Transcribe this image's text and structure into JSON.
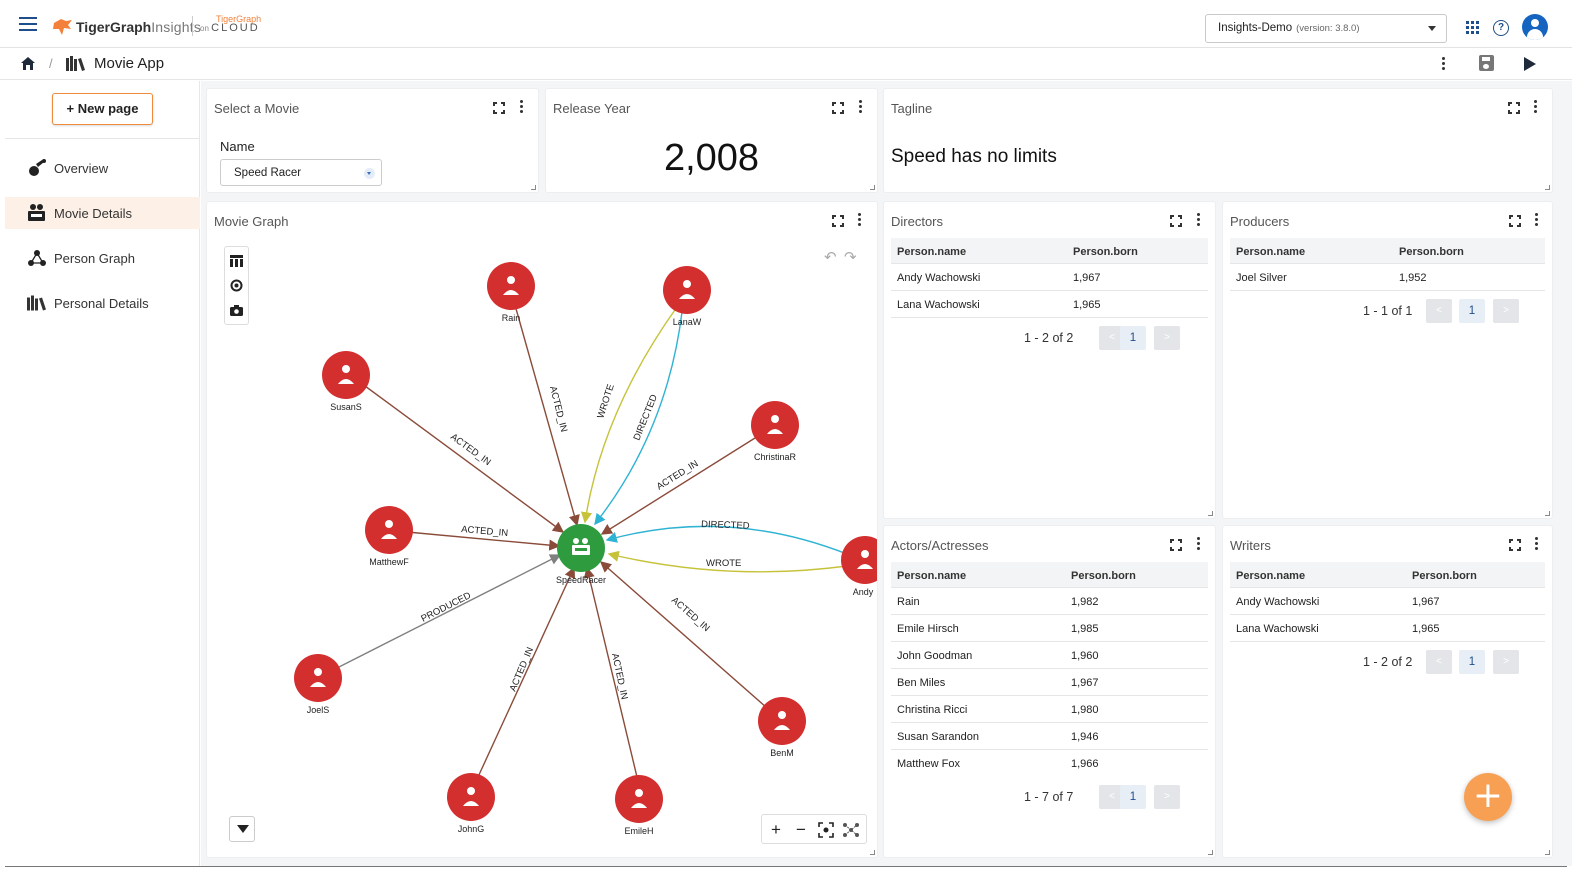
{
  "header": {
    "brand_bold": "TigerGraph",
    "brand_light": "Insights",
    "cloud_small": "on",
    "cloud_tg": "TigerGraph",
    "cloud_text": "CLOUD",
    "project_name": "Insights-Demo",
    "project_version": "(version: 3.8.0)",
    "help_glyph": "?",
    "icons": [
      "menu-icon",
      "tigergraph-logo",
      "apps-grid-icon",
      "help-icon",
      "account-icon"
    ]
  },
  "breadcrumb": {
    "separator": "/",
    "app_title": "Movie App",
    "icons": [
      "home-icon",
      "app-icon",
      "more-vert-icon",
      "save-icon",
      "play-icon"
    ]
  },
  "sidebar": {
    "new_page_label": "+ New page",
    "items": [
      {
        "label": "Overview",
        "icon": "bar-chart-icon",
        "active": false
      },
      {
        "label": "Movie Details",
        "icon": "movie-icon",
        "active": true
      },
      {
        "label": "Person Graph",
        "icon": "graph-icon",
        "active": false
      },
      {
        "label": "Personal Details",
        "icon": "people-icon",
        "active": false
      }
    ]
  },
  "widgets": {
    "select_movie": {
      "title": "Select a Movie",
      "field_label": "Name",
      "value": "Speed Racer"
    },
    "release_year": {
      "title": "Release Year",
      "value": "2,008"
    },
    "tagline": {
      "title": "Tagline",
      "value": "Speed has no limits"
    },
    "movie_graph": {
      "title": "Movie Graph",
      "undo": "↶",
      "redo": "↷",
      "zoom_in": "+",
      "zoom_out": "−",
      "center": "SpeedRacer",
      "nodes": [
        "Rain",
        "LanaW",
        "SusanS",
        "ChristinaR",
        "MatthewF",
        "Andy",
        "JoelS",
        "BenM",
        "JohnG",
        "EmileH"
      ],
      "edges": [
        {
          "from": "Rain",
          "label": "ACTED_IN"
        },
        {
          "from": "LanaW",
          "label": "WROTE"
        },
        {
          "from": "LanaW",
          "label": "DIRECTED"
        },
        {
          "from": "SusanS",
          "label": "ACTED_IN"
        },
        {
          "from": "ChristinaR",
          "label": "ACTED_IN"
        },
        {
          "from": "MatthewF",
          "label": "ACTED_IN"
        },
        {
          "from": "Andy",
          "label": "DIRECTED"
        },
        {
          "from": "Andy",
          "label": "WROTE"
        },
        {
          "from": "JoelS",
          "label": "PRODUCED"
        },
        {
          "from": "BenM",
          "label": "ACTED_IN"
        },
        {
          "from": "JohnG",
          "label": "ACTED_IN"
        },
        {
          "from": "EmileH",
          "label": "ACTED_IN"
        }
      ],
      "colors": {
        "person": "#d32f2f",
        "movie": "#2e9b3e",
        "acted_in": "#8a4b3a",
        "wrote": "#c6c23a",
        "directed": "#2fb3d3",
        "produced": "#808080"
      }
    },
    "directors": {
      "title": "Directors",
      "columns": [
        "Person.name",
        "Person.born"
      ],
      "rows": [
        [
          "Andy Wachowski",
          "1,967"
        ],
        [
          "Lana Wachowski",
          "1,965"
        ]
      ],
      "pager_text": "1 - 2 of 2",
      "page": "1",
      "prev": "<",
      "next": ">"
    },
    "producers": {
      "title": "Producers",
      "columns": [
        "Person.name",
        "Person.born"
      ],
      "rows": [
        [
          "Joel Silver",
          "1,952"
        ]
      ],
      "pager_text": "1 - 1 of 1",
      "page": "1",
      "prev": "<",
      "next": ">"
    },
    "actors": {
      "title": "Actors/Actresses",
      "columns": [
        "Person.name",
        "Person.born"
      ],
      "rows": [
        [
          "Rain",
          "1,982"
        ],
        [
          "Emile Hirsch",
          "1,985"
        ],
        [
          "John Goodman",
          "1,960"
        ],
        [
          "Ben Miles",
          "1,967"
        ],
        [
          "Christina Ricci",
          "1,980"
        ],
        [
          "Susan Sarandon",
          "1,946"
        ],
        [
          "Matthew Fox",
          "1,966"
        ]
      ],
      "pager_text": "1 - 7 of 7",
      "page": "1",
      "prev": "<",
      "next": ">"
    },
    "writers": {
      "title": "Writers",
      "columns": [
        "Person.name",
        "Person.born"
      ],
      "rows": [
        [
          "Andy Wachowski",
          "1,967"
        ],
        [
          "Lana Wachowski",
          "1,965"
        ]
      ],
      "pager_text": "1 - 2 of 2",
      "page": "1",
      "prev": "<",
      "next": ">"
    }
  },
  "fab_label": "+",
  "colors": {
    "accent": "#f08a3c",
    "primary": "#1f4e8c",
    "fab": "#f7a054"
  }
}
